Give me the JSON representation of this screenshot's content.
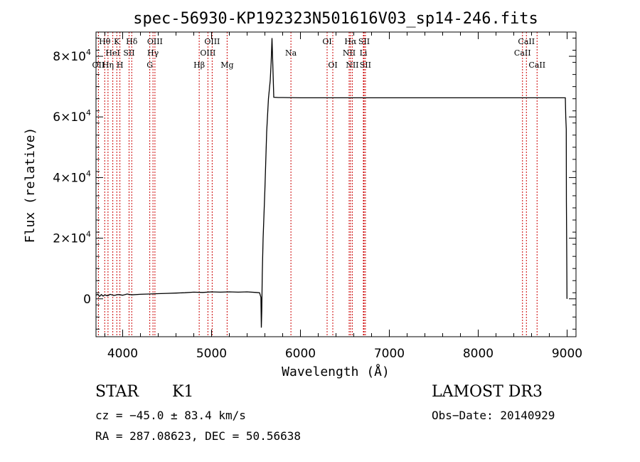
{
  "chart_data": {
    "type": "line",
    "title": "spec-56930-KP192323N501616V03_sp14-246.fits",
    "xlabel": "Wavelength (Å)",
    "ylabel": "Flux (relative)",
    "xlim": [
      3700,
      9100
    ],
    "ylim": [
      -12500,
      88000
    ],
    "x_ticks": [
      4000,
      5000,
      6000,
      7000,
      8000,
      9000
    ],
    "x_tick_labels": [
      "4000",
      "5000",
      "6000",
      "7000",
      "8000",
      "9000"
    ],
    "y_ticks": [
      0,
      20000,
      40000,
      60000,
      80000
    ],
    "y_tick_labels": [
      {
        "mantissa": "0",
        "exp": ""
      },
      {
        "mantissa": "2×10",
        "exp": "4"
      },
      {
        "mantissa": "4×10",
        "exp": "4"
      },
      {
        "mantissa": "6×10",
        "exp": "4"
      },
      {
        "mantissa": "8×10",
        "exp": "4"
      }
    ],
    "series": [
      {
        "name": "flux",
        "x": [
          3700,
          3720,
          3740,
          3760,
          3780,
          3800,
          3830,
          3860,
          3900,
          3950,
          4000,
          4050,
          4100,
          4200,
          4300,
          4400,
          4500,
          4600,
          4700,
          4800,
          4900,
          5000,
          5100,
          5200,
          5300,
          5400,
          5500,
          5540,
          5555,
          5560,
          5565,
          5570,
          5580,
          5600,
          5620,
          5640,
          5660,
          5670,
          5680,
          5690,
          5700,
          5750,
          5800,
          6000,
          6500,
          7000,
          7500,
          8000,
          8500,
          8980,
          8985,
          8990,
          8992,
          8995,
          8998,
          9000
        ],
        "y": [
          1200,
          1500,
          800,
          1400,
          900,
          1300,
          1000,
          1500,
          1100,
          1400,
          1200,
          1600,
          1300,
          1500,
          1600,
          1700,
          1800,
          1900,
          2000,
          2200,
          2100,
          2300,
          2200,
          2300,
          2200,
          2300,
          2100,
          2000,
          500,
          -9500,
          -4000,
          8000,
          20000,
          36000,
          55000,
          66000,
          72000,
          78000,
          86000,
          76000,
          66500,
          66400,
          66400,
          66300,
          66300,
          66300,
          66300,
          66300,
          66300,
          66300,
          60000,
          56000,
          32000,
          18000,
          200,
          0
        ]
      }
    ],
    "line_markers": [
      {
        "label": "Hθ",
        "x": 3798,
        "row": 1
      },
      {
        "label": "OII",
        "x": 3727,
        "row": 3
      },
      {
        "label": "Hη",
        "x": 3835,
        "row": 3
      },
      {
        "label": "K",
        "x": 3934,
        "row": 1
      },
      {
        "label": "HeI",
        "x": 3889,
        "row": 2
      },
      {
        "label": "H",
        "x": 3969,
        "row": 3
      },
      {
        "label": "SII",
        "x": 4072,
        "row": 2
      },
      {
        "label": "Hδ",
        "x": 4102,
        "row": 1
      },
      {
        "label": "OIII",
        "x": 4363,
        "row": 1
      },
      {
        "label": "Hγ",
        "x": 4341,
        "row": 2
      },
      {
        "label": "G",
        "x": 4305,
        "row": 3
      },
      {
        "label": "OIII",
        "x": 5007,
        "row": 1
      },
      {
        "label": "OIII",
        "x": 4959,
        "row": 2
      },
      {
        "label": "Hβ",
        "x": 4861,
        "row": 3
      },
      {
        "label": "Mg",
        "x": 5175,
        "row": 3
      },
      {
        "label": "Na",
        "x": 5893,
        "row": 2
      },
      {
        "label": "OI",
        "x": 6300,
        "row": 1
      },
      {
        "label": "OI",
        "x": 6364,
        "row": 3
      },
      {
        "label": "Hα",
        "x": 6563,
        "row": 1
      },
      {
        "label": "NII",
        "x": 6548,
        "row": 2
      },
      {
        "label": "NII",
        "x": 6583,
        "row": 3
      },
      {
        "label": "SII",
        "x": 6716,
        "row": 1
      },
      {
        "label": "Li",
        "x": 6708,
        "row": 2
      },
      {
        "label": "SII",
        "x": 6731,
        "row": 3
      },
      {
        "label": "CaII",
        "x": 8542,
        "row": 1
      },
      {
        "label": "CaII",
        "x": 8498,
        "row": 2
      },
      {
        "label": "CaII",
        "x": 8662,
        "row": 3
      }
    ],
    "marker_color": "#cc0000",
    "line_color": "#000000"
  },
  "footer": {
    "object_type": "STAR",
    "subclass": "K1",
    "survey": "LAMOST DR3",
    "cz": "cz = −45.0 ± 83.4 km/s",
    "obs_date": "Obs−Date: 20140929",
    "radec": "RA = 287.08623, DEC =  50.56638"
  }
}
